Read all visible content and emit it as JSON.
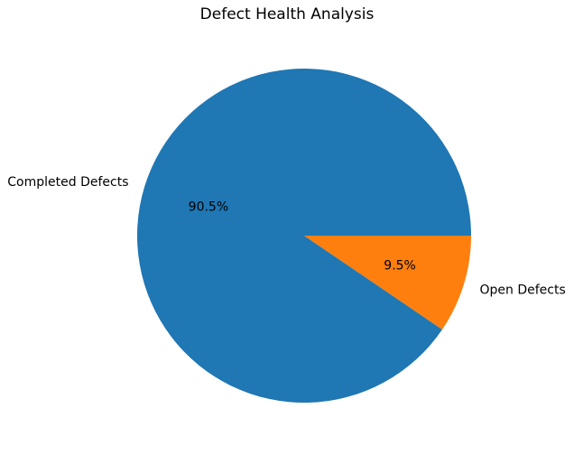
{
  "chart_data": {
    "type": "pie",
    "title": "Defect Health Analysis",
    "labels": [
      "Completed Defects",
      "Open Defects"
    ],
    "values": [
      90.5,
      9.5
    ],
    "pct_labels": [
      "90.5%",
      "9.5%"
    ],
    "colors": [
      "#1f77b4",
      "#ff7f0e"
    ],
    "start_angle": 0,
    "direction": "counterclockwise",
    "label_distance": 1.1,
    "pct_distance": 0.6,
    "legend": "none",
    "background": "#ffffff",
    "text_color": "#000000"
  }
}
